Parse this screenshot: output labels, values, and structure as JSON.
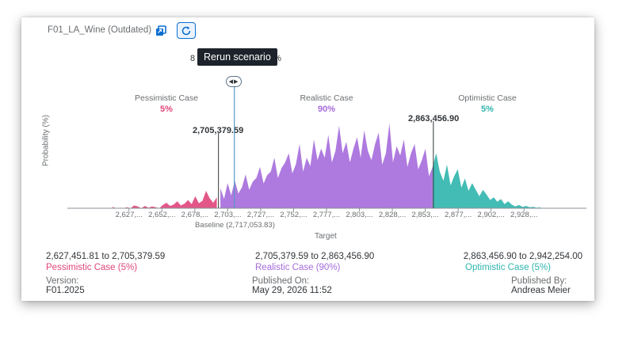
{
  "header": {
    "title": "F01_LA_Wine (Outdated)",
    "copy_icon": "copy-icon",
    "rerun_icon": "refresh-icon"
  },
  "tooltip": {
    "text": "Rerun scenario",
    "left_partial": "8",
    "right_partial": "2%"
  },
  "cases": {
    "pessimistic": {
      "label": "Pessimistic Case",
      "pct": "5%"
    },
    "realistic": {
      "label": "Realistic Case",
      "pct": "90%"
    },
    "optimistic": {
      "label": "Optimistic Case",
      "pct": "5%"
    }
  },
  "chart_data": {
    "type": "area",
    "ylabel": "Probability (%)",
    "xlabel": "Target",
    "x_tick_labels": [
      "2,627,...",
      "2,652,...",
      "2,678,...",
      "2,703,...",
      "2,727,...",
      "2,752,...",
      "2,777,...",
      "2,803,...",
      "2,828,...",
      "2,853,...",
      "2,877,...",
      "2,902,...",
      "2,928,..."
    ],
    "x_range": [
      2627451.81,
      2942254.0
    ],
    "lower_threshold": 2705379.59,
    "upper_threshold": 2863456.9,
    "lower_threshold_label": "2,705,379.59",
    "upper_threshold_label": "2,863,456.90",
    "baseline": 2717053.83,
    "baseline_label": "Baseline (2,717,053.83)",
    "colors": {
      "pessimistic": "#e0457b",
      "realistic": "#a56bdb",
      "optimistic": "#2fb5ad",
      "baseline": "#5899c4",
      "marker": "#32363a",
      "axis": "#89919a"
    },
    "distribution_values": [
      0.3,
      0.0,
      0.1,
      0.0,
      0.2,
      0.0,
      0.6,
      0.4,
      0.0,
      0.5,
      0.1,
      0.4,
      0.2,
      0.0,
      0.7,
      1.2,
      0.5,
      0.8,
      1.5,
      0.6,
      1.0,
      1.8,
      0.9,
      2.6,
      1.1,
      1.6,
      3.8,
      2.2,
      1.2,
      2.4,
      4.4,
      2.0,
      5.5,
      2.8,
      6.0,
      3.2,
      4.6,
      7.4,
      4.0,
      5.8,
      6.6,
      9.0,
      5.4,
      7.2,
      8.0,
      11.0,
      6.6,
      8.8,
      10.0,
      12.0,
      7.6,
      9.6,
      14.0,
      8.0,
      11.0,
      9.2,
      15.0,
      10.5,
      13.0,
      11.0,
      16.0,
      10.0,
      12.5,
      18.0,
      12.0,
      14.5,
      10.0,
      13.0,
      15.5,
      11.0,
      17.0,
      12.5,
      10.5,
      14.0,
      16.5,
      9.5,
      12.0,
      18.5,
      10.0,
      13.5,
      11.5,
      15.0,
      9.0,
      12.0,
      14.0,
      8.5,
      10.5,
      13.0,
      7.0,
      9.0,
      12.0,
      8.0,
      6.0,
      9.5,
      5.0,
      7.0,
      8.5,
      4.5,
      6.5,
      3.8,
      5.5,
      4.0,
      2.6,
      4.0,
      3.0,
      1.8,
      2.4,
      1.4,
      2.0,
      0.9,
      1.5,
      0.8,
      0.4,
      0.7,
      0.3,
      0.5,
      0.2,
      0.3,
      0.1,
      0.2
    ],
    "ylim": [
      0,
      19
    ]
  },
  "ranges": {
    "pessimistic": {
      "range": "2,627,451.81 to 2,705,379.59",
      "name": "Pessimistic Case (5%)"
    },
    "realistic": {
      "range": "2,705,379.59 to 2,863,456.90",
      "name": "Realistic Case (90%)"
    },
    "optimistic": {
      "range": "2,863,456.90 to 2,942,254.00",
      "name": "Optimistic Case (5%)"
    }
  },
  "meta": {
    "version_label": "Version:",
    "version": "F01.2025",
    "published_on_label": "Published On:",
    "published_on": "May 29, 2026 11:52",
    "published_by_label": "Published By:",
    "published_by": "Andreas Meier"
  }
}
